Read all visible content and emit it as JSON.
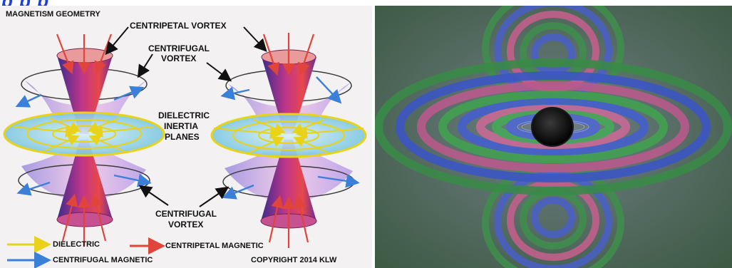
{
  "header": {
    "partial_title": "p p p"
  },
  "diagram": {
    "title": "MAGNETISM GEOMETRY",
    "labels": {
      "centripetal_vortex": "CENTRIPETAL VORTEX",
      "centrifugal_vortex_top_1": "CENTRIFUGAL",
      "centrifugal_vortex_top_2": "VORTEX",
      "dielectric_1": "DIELECTRIC",
      "dielectric_2": "INERTIA",
      "dielectric_3": "PLANES",
      "centrifugal_vortex_bottom_1": "CENTRIFUGAL",
      "centrifugal_vortex_bottom_2": "VORTEX"
    },
    "legend": {
      "dielectric": "DIELECTRIC",
      "centripetal_magnetic": "CENTRIPETAL MAGNETIC",
      "centrifugal_magnetic": "CENTRIFUGAL MAGNETIC"
    },
    "copyright": "COPYRIGHT 2014 KLW",
    "colors": {
      "dielectric": "#e8d21a",
      "centripetal": "#e0443a",
      "centrifugal": "#3a7fd8"
    }
  },
  "field_image": {
    "description_icon": "magnetic-field-interference-image"
  }
}
